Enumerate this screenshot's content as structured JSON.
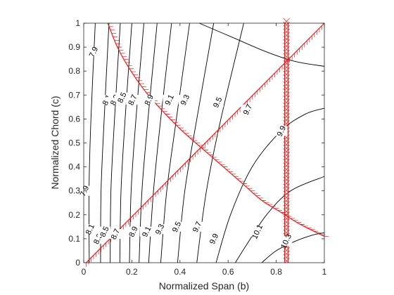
{
  "chart_data": {
    "type": "contour",
    "xlabel": "Normalized Span (b)",
    "ylabel": "Normalized Chord (c)",
    "xlim": [
      0,
      1
    ],
    "ylim": [
      0,
      1
    ],
    "xticks": [
      "0",
      "0.2",
      "0.4",
      "0.6",
      "0.8",
      "1"
    ],
    "yticks": [
      "0",
      "0.1",
      "0.2",
      "0.3",
      "0.4",
      "0.5",
      "0.6",
      "0.7",
      "0.8",
      "0.9",
      "1"
    ],
    "grid": false,
    "contour_color": "#000000",
    "constraint_color": "#e02020",
    "contours": [
      {
        "label": "7.9",
        "points": [
          [
            0.023,
            0
          ],
          [
            0.022,
            0.3
          ],
          [
            0.03,
            0.6
          ],
          [
            0.048,
            1
          ]
        ],
        "label_at": [
          [
            0.002,
            0.3
          ],
          [
            0.04,
            0.88
          ]
        ]
      },
      {
        "label": "8.1",
        "points": [
          [
            0.07,
            0
          ],
          [
            0.072,
            0.3
          ],
          [
            0.085,
            0.6
          ],
          [
            0.105,
            1
          ]
        ],
        "label_at": [
          [
            0.025,
            0.14
          ],
          [
            0.095,
            0.68
          ]
        ]
      },
      {
        "label": "8.3",
        "points": [
          [
            0.11,
            0
          ],
          [
            0.113,
            0.3
          ],
          [
            0.128,
            0.6
          ],
          [
            0.152,
            1
          ]
        ],
        "label_at": [
          [
            0.058,
            0.1
          ],
          [
            0.128,
            0.68
          ]
        ]
      },
      {
        "label": "8.5",
        "points": [
          [
            0.15,
            0
          ],
          [
            0.155,
            0.3
          ],
          [
            0.172,
            0.6
          ],
          [
            0.2,
            1
          ]
        ],
        "label_at": [
          [
            0.085,
            0.13
          ],
          [
            0.158,
            0.69
          ]
        ]
      },
      {
        "label": "8.7",
        "points": [
          [
            0.19,
            0
          ],
          [
            0.197,
            0.3
          ],
          [
            0.217,
            0.6
          ],
          [
            0.25,
            1
          ]
        ],
        "label_at": [
          [
            0.13,
            0.12
          ],
          [
            0.202,
            0.68
          ]
        ]
      },
      {
        "label": "8.9",
        "points": [
          [
            0.23,
            0
          ],
          [
            0.242,
            0.3
          ],
          [
            0.267,
            0.6
          ],
          [
            0.305,
            1
          ]
        ],
        "label_at": [
          [
            0.205,
            0.13
          ],
          [
            0.27,
            0.68
          ]
        ]
      },
      {
        "label": "9.1",
        "points": [
          [
            0.27,
            0
          ],
          [
            0.29,
            0.3
          ],
          [
            0.32,
            0.6
          ],
          [
            0.365,
            1
          ]
        ],
        "label_at": [
          [
            0.26,
            0.13
          ],
          [
            0.355,
            0.68
          ]
        ]
      },
      {
        "label": "9.3",
        "points": [
          [
            0.32,
            0
          ],
          [
            0.345,
            0.3
          ],
          [
            0.385,
            0.6
          ],
          [
            0.44,
            1
          ]
        ],
        "label_at": [
          [
            0.315,
            0.14
          ],
          [
            0.42,
            0.68
          ]
        ]
      },
      {
        "label": "9.5",
        "points": [
          [
            0.39,
            0
          ],
          [
            0.42,
            0.3
          ],
          [
            0.47,
            0.6
          ],
          [
            0.54,
            1
          ]
        ],
        "label_at": [
          [
            0.385,
            0.15
          ],
          [
            0.555,
            0.67
          ]
        ]
      },
      {
        "label": "9.7",
        "points": [
          [
            0.47,
            0
          ],
          [
            0.51,
            0.3
          ],
          [
            0.57,
            0.6
          ],
          [
            0.665,
            1
          ]
        ],
        "label_at": [
          [
            0.47,
            0.15
          ],
          [
            0.68,
            0.64
          ]
        ]
      },
      {
        "label": "9.9",
        "points": [
          [
            0.55,
            0
          ],
          [
            0.61,
            0.2
          ],
          [
            0.7,
            0.4
          ],
          [
            0.82,
            0.55
          ],
          [
            0.92,
            0.62
          ],
          [
            1,
            0.645
          ]
        ],
        "label_at": [
          [
            0.54,
            0.1
          ],
          [
            0.82,
            0.55
          ]
        ]
      },
      {
        "label": "10.1",
        "points": [
          [
            0.63,
            0
          ],
          [
            0.68,
            0.08
          ],
          [
            0.76,
            0.2
          ],
          [
            0.86,
            0.3
          ],
          [
            1,
            0.36
          ]
        ],
        "label_at": [
          [
            0.72,
            0.13
          ]
        ]
      },
      {
        "label": "10.3",
        "points": [
          [
            0.74,
            0
          ],
          [
            0.8,
            0.05
          ],
          [
            0.88,
            0.09
          ],
          [
            0.95,
            0.115
          ],
          [
            1,
            0.125
          ]
        ],
        "label_at": [
          [
            0.84,
            0.09
          ]
        ]
      },
      {
        "label": "",
        "points": [
          [
            0.48,
            1
          ],
          [
            0.62,
            0.94
          ],
          [
            0.76,
            0.88
          ],
          [
            0.88,
            0.84
          ],
          [
            1,
            0.82
          ]
        ],
        "label_at": []
      }
    ],
    "constraints": [
      {
        "kind": "diagonal",
        "points": [
          [
            0.01,
            0
          ],
          [
            1,
            1
          ]
        ]
      },
      {
        "kind": "curve",
        "points": [
          [
            0.1,
            1
          ],
          [
            0.14,
            0.9
          ],
          [
            0.19,
            0.81
          ],
          [
            0.26,
            0.71
          ],
          [
            0.34,
            0.62
          ],
          [
            0.42,
            0.54
          ],
          [
            0.5,
            0.47
          ],
          [
            0.58,
            0.4
          ],
          [
            0.66,
            0.33
          ],
          [
            0.74,
            0.26
          ],
          [
            0.82,
            0.21
          ],
          [
            0.9,
            0.16
          ],
          [
            1,
            0.11
          ]
        ]
      },
      {
        "kind": "vertical",
        "points": [
          [
            0.835,
            0
          ],
          [
            0.835,
            1
          ]
        ]
      },
      {
        "kind": "vertical",
        "points": [
          [
            0.85,
            0
          ],
          [
            0.85,
            1
          ]
        ]
      }
    ]
  }
}
